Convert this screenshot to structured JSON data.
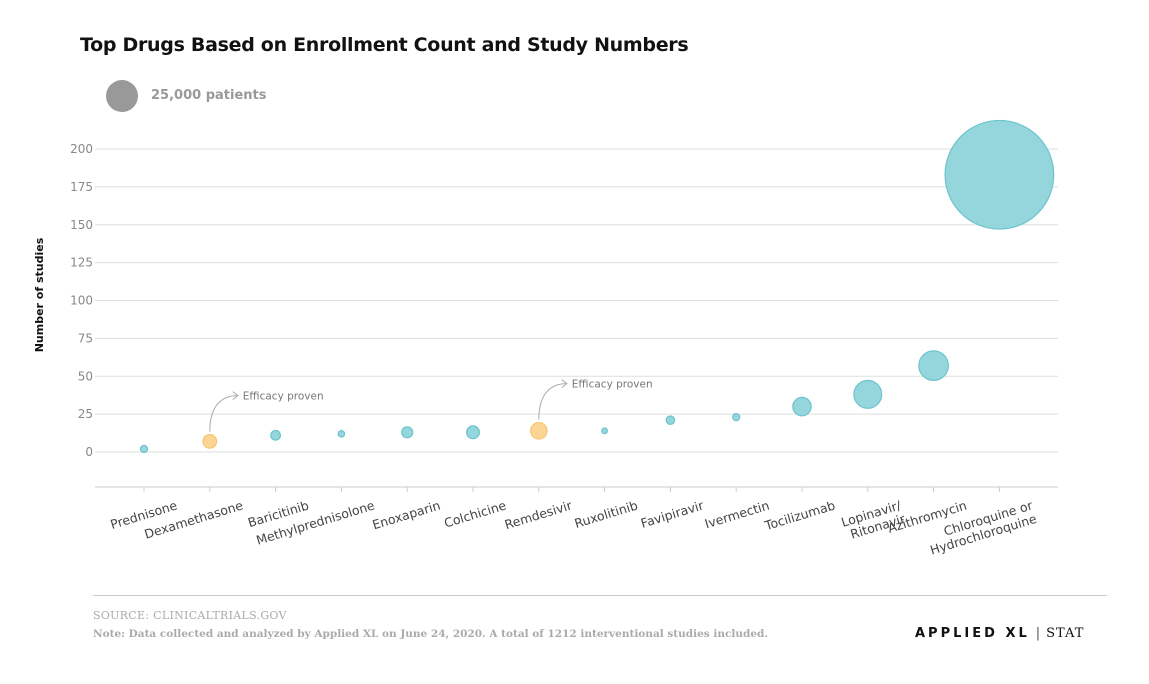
{
  "title": "Top Drugs Based on Enrollment Count and Study Numbers",
  "legend": {
    "label": "25,000 patients",
    "color": "#999999"
  },
  "footer": {
    "source": "SOURCE: CLINICALTRIALS.GOV",
    "note": "Note: Data collected and analyzed by Applied XL on June 24, 2020. A total of 1212 interventional studies included.",
    "brand_applied": "APPLIED",
    "brand_xl": "XL",
    "brand_sep": "|",
    "brand_stat": "STAT"
  },
  "chart_data": {
    "type": "scatter",
    "title": "Top Drugs Based on Enrollment Count and Study Numbers",
    "ylabel": "Number of studies",
    "xlabel": "",
    "ylim": [
      -23,
      220
    ],
    "yticks": [
      0,
      25,
      50,
      75,
      100,
      125,
      150,
      175,
      200
    ],
    "grid": true,
    "legend_position": "top-left",
    "colors": {
      "default": "#8fd4da",
      "default_stroke": "#6cc4cc",
      "proven": "#fbd38d",
      "proven_stroke": "#f6c66e"
    },
    "categories": [
      "Prednisone",
      "Dexamethasone",
      "Baricitinib",
      "Methylprednisolone",
      "Enoxaparin",
      "Colchicine",
      "Remdesivir",
      "Ruxolitinib",
      "Favipiravir",
      "Ivermectin",
      "Tocilizumab",
      "Lopinavir/\nRitonavir",
      "Azithromycin",
      "Chloroquine or\nHydrochloroquine"
    ],
    "points": [
      {
        "name": "Prednisone",
        "studies": 2,
        "bubble_rel": 0.05,
        "proven": false
      },
      {
        "name": "Dexamethasone",
        "studies": 7,
        "bubble_rel": 0.18,
        "proven": true
      },
      {
        "name": "Baricitinib",
        "studies": 11,
        "bubble_rel": 0.09,
        "proven": false
      },
      {
        "name": "Methylprednisolone",
        "studies": 12,
        "bubble_rel": 0.04,
        "proven": false
      },
      {
        "name": "Enoxaparin",
        "studies": 13,
        "bubble_rel": 0.12,
        "proven": false
      },
      {
        "name": "Colchicine",
        "studies": 13,
        "bubble_rel": 0.16,
        "proven": false
      },
      {
        "name": "Remdesivir",
        "studies": 14,
        "bubble_rel": 0.26,
        "proven": true
      },
      {
        "name": "Ruxolitinib",
        "studies": 14,
        "bubble_rel": 0.03,
        "proven": false
      },
      {
        "name": "Favipiravir",
        "studies": 21,
        "bubble_rel": 0.07,
        "proven": false
      },
      {
        "name": "Ivermectin",
        "studies": 23,
        "bubble_rel": 0.05,
        "proven": false
      },
      {
        "name": "Tocilizumab",
        "studies": 30,
        "bubble_rel": 0.33,
        "proven": false
      },
      {
        "name": "Lopinavir/ Ritonavir",
        "studies": 38,
        "bubble_rel": 0.75,
        "proven": false
      },
      {
        "name": "Azithromycin",
        "studies": 57,
        "bubble_rel": 0.85,
        "proven": false
      },
      {
        "name": "Chloroquine or Hydrochloroquine",
        "studies": 183,
        "bubble_rel": 11.5,
        "proven": false
      }
    ],
    "annotations": [
      {
        "target": "Dexamethasone",
        "text": "Efficacy proven"
      },
      {
        "target": "Remdesivir",
        "text": "Efficacy proven"
      }
    ]
  }
}
